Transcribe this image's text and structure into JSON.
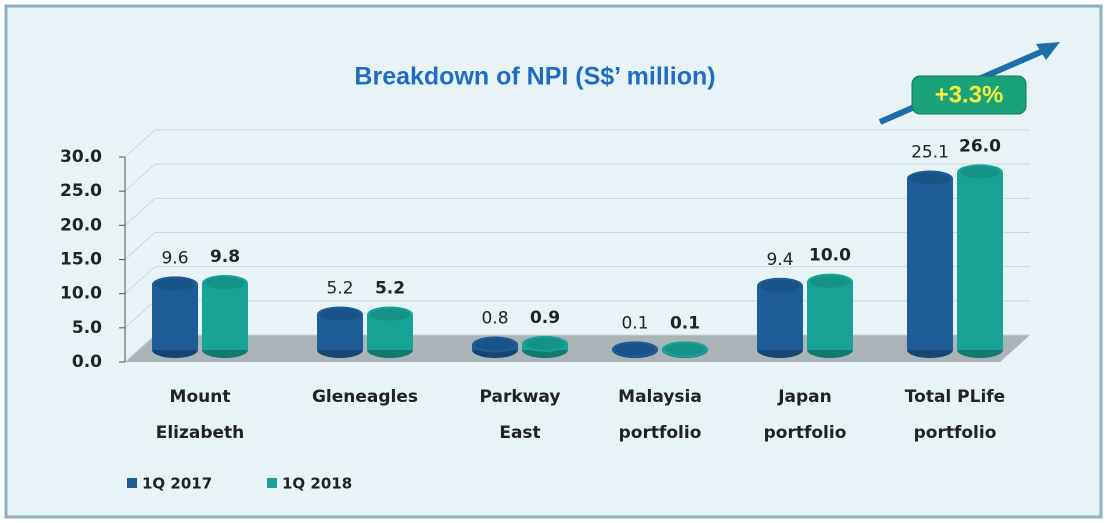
{
  "chart_data": {
    "type": "bar",
    "title": "Breakdown of NPI (S$’ million)",
    "categories": [
      "Mount Elizabeth",
      "Gleneagles",
      "Parkway East",
      "Malaysia portfolio",
      "Japan portfolio",
      "Total PLife portfolio"
    ],
    "series": [
      {
        "name": "1Q 2017",
        "color": "#1d5c96",
        "values": [
          9.6,
          5.2,
          0.8,
          0.1,
          9.4,
          25.1
        ],
        "value_labels": [
          "9.6",
          "5.2",
          "0.8",
          "0.1",
          "9.4",
          "25.1"
        ]
      },
      {
        "name": "1Q 2018",
        "color": "#17a396",
        "values": [
          9.8,
          5.2,
          0.9,
          0.1,
          10.0,
          26.0
        ],
        "value_labels": [
          "9.8",
          "5.2",
          "0.9",
          "0.1",
          "10.0",
          "26.0"
        ]
      }
    ],
    "ylim": [
      0,
      30
    ],
    "yticks": [
      {
        "value": 0,
        "label": "0.0"
      },
      {
        "value": 5,
        "label": "5.0"
      },
      {
        "value": 10,
        "label": "10.0"
      },
      {
        "value": 15,
        "label": "15.0"
      },
      {
        "value": 20,
        "label": "20.0"
      },
      {
        "value": 25,
        "label": "25.0"
      },
      {
        "value": 30,
        "label": "30.0"
      }
    ],
    "grid": true,
    "legend": "bottom-left",
    "annotation": "+3.3%"
  }
}
